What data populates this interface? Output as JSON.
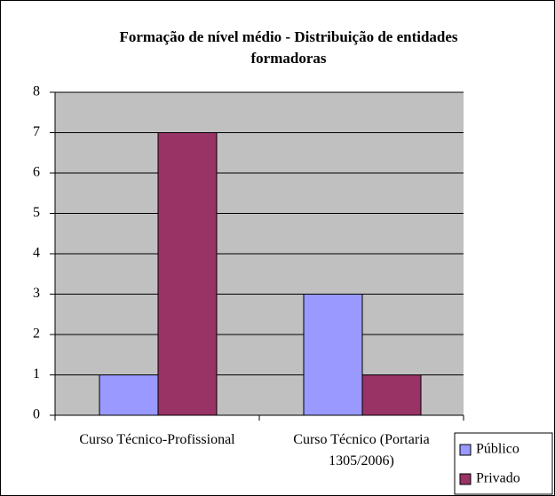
{
  "chart_data": {
    "type": "bar",
    "title": "Formação de nível médio - Distribuição de entidades formadoras",
    "categories": [
      "Curso Técnico-Profissional",
      "Curso Técnico (Portaria 1305/2006)"
    ],
    "series": [
      {
        "name": "Público",
        "color": "#9999ff",
        "values": [
          1,
          3
        ]
      },
      {
        "name": "Privado",
        "color": "#993366",
        "values": [
          7,
          1
        ]
      }
    ],
    "ylim": [
      0,
      8
    ],
    "yticks": [
      0,
      1,
      2,
      3,
      4,
      5,
      6,
      7,
      8
    ],
    "grid": true,
    "legend": "bottom-right"
  }
}
